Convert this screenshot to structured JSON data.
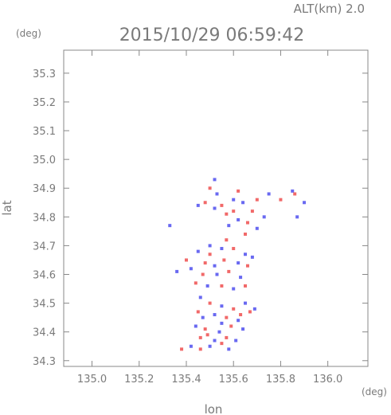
{
  "chart_data": {
    "type": "scatter",
    "title": "2015/10/29 06:59:42",
    "altitude_label": "ALT(km) 2.0",
    "xlabel": "lon",
    "ylabel": "lat",
    "x_unit": "(deg)",
    "y_unit": "(deg)",
    "xlim": [
      134.88,
      136.17
    ],
    "ylim": [
      34.28,
      35.38
    ],
    "x_ticks": [
      "135.0",
      "135.2",
      "135.4",
      "135.6",
      "135.8",
      "136.0"
    ],
    "y_ticks": [
      "34.3",
      "34.4",
      "34.5",
      "34.6",
      "34.7",
      "34.8",
      "34.9",
      "35.0",
      "35.1",
      "35.2",
      "35.3"
    ],
    "grid": false,
    "colors": {
      "positive": "#ee4444",
      "negative": "#4444ee",
      "axis": "#888888"
    },
    "series": [
      {
        "values": [
          [
            135.5,
            34.9,
            1
          ],
          [
            135.53,
            34.88,
            -1
          ],
          [
            135.62,
            34.89,
            1
          ],
          [
            135.6,
            34.86,
            -1
          ],
          [
            135.64,
            34.85,
            -1
          ],
          [
            135.7,
            34.86,
            1
          ],
          [
            135.75,
            34.88,
            -1
          ],
          [
            135.8,
            34.86,
            1
          ],
          [
            135.85,
            34.89,
            -1
          ],
          [
            135.86,
            34.88,
            1
          ],
          [
            135.87,
            34.8,
            -1
          ],
          [
            135.9,
            34.85,
            -1
          ],
          [
            135.48,
            34.85,
            1
          ],
          [
            135.52,
            34.83,
            -1
          ],
          [
            135.57,
            34.81,
            1
          ],
          [
            135.62,
            34.79,
            -1
          ],
          [
            135.66,
            34.78,
            1
          ],
          [
            135.7,
            34.76,
            -1
          ],
          [
            135.55,
            34.84,
            1
          ],
          [
            135.45,
            34.84,
            -1
          ],
          [
            135.6,
            34.82,
            1
          ],
          [
            135.58,
            34.77,
            -1
          ],
          [
            135.68,
            34.82,
            1
          ],
          [
            135.73,
            34.8,
            -1
          ],
          [
            135.52,
            34.93,
            -1
          ],
          [
            135.65,
            34.74,
            1
          ],
          [
            135.33,
            34.77,
            -1
          ],
          [
            135.45,
            34.68,
            -1
          ],
          [
            135.5,
            34.67,
            1
          ],
          [
            135.55,
            34.69,
            -1
          ],
          [
            135.6,
            34.69,
            1
          ],
          [
            135.65,
            34.67,
            -1
          ],
          [
            135.48,
            34.64,
            1
          ],
          [
            135.52,
            34.63,
            -1
          ],
          [
            135.56,
            34.65,
            1
          ],
          [
            135.62,
            34.64,
            -1
          ],
          [
            135.66,
            34.63,
            1
          ],
          [
            135.42,
            34.62,
            -1
          ],
          [
            135.47,
            34.6,
            1
          ],
          [
            135.53,
            34.6,
            -1
          ],
          [
            135.58,
            34.61,
            1
          ],
          [
            135.63,
            34.59,
            -1
          ],
          [
            135.44,
            34.57,
            1
          ],
          [
            135.49,
            34.56,
            -1
          ],
          [
            135.55,
            34.56,
            1
          ],
          [
            135.6,
            34.55,
            -1
          ],
          [
            135.65,
            34.56,
            1
          ],
          [
            135.4,
            34.65,
            1
          ],
          [
            135.5,
            34.7,
            -1
          ],
          [
            135.57,
            34.72,
            1
          ],
          [
            135.68,
            34.66,
            -1
          ],
          [
            135.36,
            34.61,
            -1
          ],
          [
            135.46,
            34.52,
            -1
          ],
          [
            135.5,
            34.5,
            1
          ],
          [
            135.55,
            34.49,
            -1
          ],
          [
            135.6,
            34.48,
            1
          ],
          [
            135.65,
            34.5,
            -1
          ],
          [
            135.45,
            34.47,
            1
          ],
          [
            135.52,
            34.46,
            -1
          ],
          [
            135.57,
            34.45,
            1
          ],
          [
            135.62,
            34.44,
            -1
          ],
          [
            135.67,
            34.47,
            1
          ],
          [
            135.44,
            34.42,
            -1
          ],
          [
            135.48,
            34.41,
            1
          ],
          [
            135.54,
            34.4,
            -1
          ],
          [
            135.59,
            34.42,
            1
          ],
          [
            135.64,
            34.41,
            -1
          ],
          [
            135.46,
            34.38,
            1
          ],
          [
            135.52,
            34.37,
            -1
          ],
          [
            135.57,
            34.38,
            1
          ],
          [
            135.61,
            34.37,
            -1
          ],
          [
            135.55,
            34.43,
            -1
          ],
          [
            135.42,
            34.35,
            -1
          ],
          [
            135.46,
            34.34,
            1
          ],
          [
            135.5,
            34.35,
            -1
          ],
          [
            135.55,
            34.36,
            1
          ],
          [
            135.38,
            34.34,
            1
          ],
          [
            135.58,
            34.34,
            -1
          ],
          [
            135.49,
            34.39,
            1
          ],
          [
            135.63,
            34.46,
            1
          ],
          [
            135.47,
            34.45,
            -1
          ],
          [
            135.69,
            34.48,
            -1
          ]
        ]
      }
    ]
  }
}
